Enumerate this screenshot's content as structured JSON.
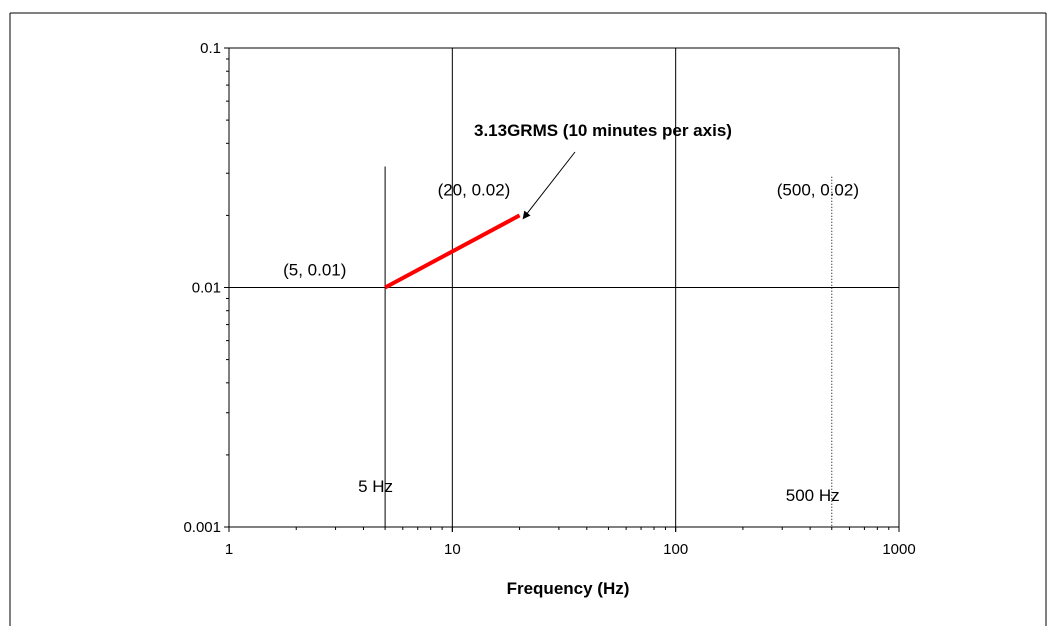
{
  "chart_data": {
    "type": "line",
    "xscale": "log",
    "yscale": "log",
    "xlim": [
      1,
      1000
    ],
    "ylim": [
      0.001,
      0.1
    ],
    "xlabel": "Frequency (Hz)",
    "ylabel": "",
    "title": "",
    "x_ticks": [
      {
        "value": 1,
        "label": "1"
      },
      {
        "value": 10,
        "label": "10"
      },
      {
        "value": 100,
        "label": "100"
      },
      {
        "value": 1000,
        "label": "1000"
      }
    ],
    "y_ticks": [
      {
        "value": 0.1,
        "label": "0.1"
      },
      {
        "value": 0.01,
        "label": "0.01"
      },
      {
        "value": 0.001,
        "label": "0.001"
      }
    ],
    "grid": "major decades",
    "legend": "none",
    "series": [
      {
        "x": [
          5,
          20
        ],
        "y": [
          0.01,
          0.02
        ],
        "color": "#ff0000"
      }
    ],
    "reference_lines": [
      {
        "x": 5,
        "y_top": 0.032,
        "style": "solid",
        "label": "5 Hz"
      },
      {
        "x": 500,
        "y_top": 0.029,
        "style": "dotted",
        "label": "500 Hz"
      }
    ],
    "annotations": [
      {
        "text": "(5, 0.01)",
        "x": 5,
        "y": 0.01
      },
      {
        "text": "(20, 0.02)",
        "x": 20,
        "y": 0.02
      },
      {
        "text": "(500, 0.02)",
        "x": 500,
        "y": 0.02
      },
      {
        "text": "3.13GRMS (10 minutes per axis)",
        "bold": true,
        "arrow_to": {
          "x": 17,
          "y": 0.019
        }
      }
    ]
  }
}
